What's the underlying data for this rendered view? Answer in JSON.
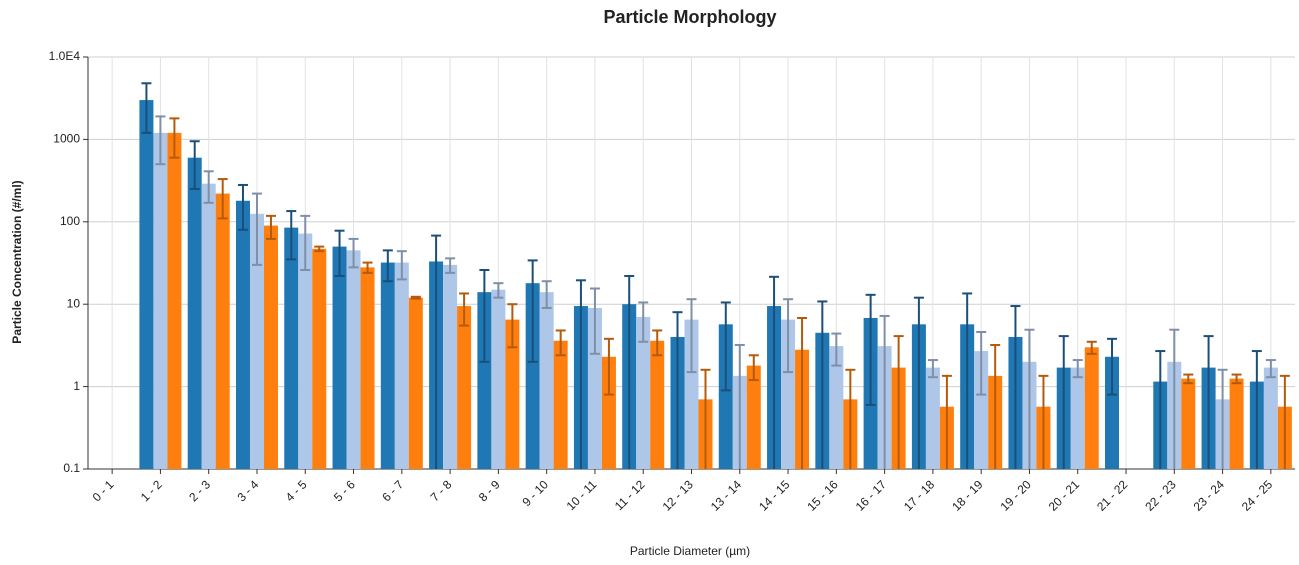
{
  "chart_data": {
    "type": "bar",
    "title": "Particle Morphology",
    "x_label": "Particle Diameter (µm)",
    "y_label": "Particle Concentration (#/ml)",
    "log_scale": true,
    "grid": true,
    "categories": [
      "0 - 1",
      "1 - 2",
      "2 - 3",
      "3 - 4",
      "4 - 5",
      "5 - 6",
      "6 - 7",
      "7 - 8",
      "8 - 9",
      "9 - 10",
      "10 - 11",
      "11 - 12",
      "12 - 13",
      "13 - 14",
      "14 - 15",
      "15 - 16",
      "16 - 17",
      "17 - 18",
      "18 - 19",
      "19 - 20",
      "20 - 21",
      "21 - 22",
      "22 - 23",
      "23 - 24",
      "24 - 25"
    ],
    "series": [
      {
        "color": "#1f77b4",
        "error_color": "#1a4f7a",
        "values": [
          null,
          3000,
          600,
          180,
          85,
          50,
          32,
          33,
          14,
          18,
          9.5,
          10,
          4,
          5.7,
          9.5,
          4.5,
          6.8,
          5.7,
          5.7,
          4,
          1.7,
          2.3,
          1.15,
          1.7,
          1.15
        ],
        "errors": [
          null,
          1800,
          350,
          100,
          50,
          28,
          13,
          35,
          12,
          16,
          10,
          12,
          4,
          4.8,
          12,
          6.3,
          6.2,
          6.3,
          7.8,
          5.5,
          2.4,
          1.5,
          1.55,
          2.4,
          1.55
        ]
      },
      {
        "color": "#aec7e8",
        "error_color": "#7f8fa8",
        "values": [
          null,
          1200,
          290,
          125,
          72,
          45,
          32,
          30,
          15,
          14,
          9,
          7,
          6.5,
          1.35,
          6.5,
          3.1,
          3.1,
          1.7,
          2.7,
          2,
          1.7,
          null,
          2,
          0.7,
          1.7
        ],
        "errors": [
          null,
          700,
          120,
          95,
          46,
          17,
          12,
          6,
          3,
          5,
          6.5,
          3.5,
          5,
          1.85,
          5,
          1.3,
          4.1,
          0.4,
          1.9,
          2.9,
          0.4,
          null,
          2.9,
          0.9,
          0.4
        ]
      },
      {
        "color": "#ff7f0e",
        "error_color": "#b55a0a",
        "values": [
          null,
          1200,
          220,
          90,
          47,
          28,
          12,
          9.5,
          6.5,
          3.6,
          2.3,
          3.6,
          0.7,
          1.8,
          2.8,
          0.7,
          1.7,
          0.57,
          1.35,
          0.57,
          3,
          null,
          1.25,
          1.25,
          0.57
        ],
        "errors": [
          null,
          600,
          110,
          28,
          3,
          4,
          0.3,
          4,
          3.5,
          1.2,
          1.5,
          1.2,
          0.9,
          0.6,
          4,
          0.9,
          2.4,
          0.78,
          1.85,
          0.78,
          0.5,
          null,
          0.15,
          0.15,
          0.78
        ]
      }
    ],
    "ylim": [
      0.1,
      10000
    ],
    "yticks": [
      0.1,
      1,
      10,
      100,
      1000,
      {
        "value": 10000,
        "label": "1.0E4"
      }
    ]
  }
}
